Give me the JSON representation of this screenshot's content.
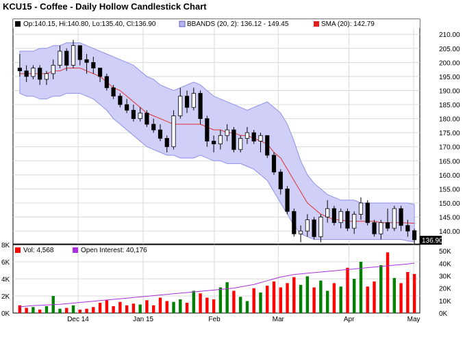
{
  "chart_data": [
    {
      "type": "candlestick",
      "title": "KCU15 - Coffee - Daily Hollow Candlestick Chart",
      "legend": {
        "ohlc": "Op:140.15, Hi:140.80, Lo:135.40, Cl:136.90",
        "bbands": "BBANDS (20, 2): 136.12 - 149.45",
        "sma": "SMA (20): 142.79"
      },
      "last_price_label": "136.90",
      "ylim": [
        135.4,
        212
      ],
      "y_ticks": [
        "140.00",
        "145.00",
        "150.00",
        "155.00",
        "160.00",
        "165.00",
        "170.00",
        "175.00",
        "180.00",
        "185.00",
        "190.00",
        "195.00",
        "200.00",
        "205.00",
        "210.00"
      ],
      "colors": {
        "up": "#000000",
        "down": "#000000",
        "bbands_fill": "#c8c8f5",
        "bbands_line": "#9090e0",
        "sma": "#e03030"
      },
      "candles": [
        {
          "o": 198,
          "h": 203,
          "l": 195,
          "c": 197
        },
        {
          "o": 197,
          "h": 199,
          "l": 193,
          "c": 195
        },
        {
          "o": 195,
          "h": 199,
          "l": 194,
          "c": 198
        },
        {
          "o": 198,
          "h": 199,
          "l": 192,
          "c": 194
        },
        {
          "o": 194,
          "h": 197,
          "l": 192,
          "c": 196
        },
        {
          "o": 196,
          "h": 201,
          "l": 194,
          "c": 199
        },
        {
          "o": 199,
          "h": 206,
          "l": 198,
          "c": 204
        },
        {
          "o": 204,
          "h": 205,
          "l": 197,
          "c": 199
        },
        {
          "o": 199,
          "h": 208,
          "l": 198,
          "c": 206
        },
        {
          "o": 206,
          "h": 206,
          "l": 199,
          "c": 201
        },
        {
          "o": 201,
          "h": 203,
          "l": 196,
          "c": 200
        },
        {
          "o": 200,
          "h": 202,
          "l": 196,
          "c": 198
        },
        {
          "o": 198,
          "h": 198,
          "l": 193,
          "c": 195
        },
        {
          "o": 195,
          "h": 196,
          "l": 190,
          "c": 191
        },
        {
          "o": 191,
          "h": 192,
          "l": 187,
          "c": 188
        },
        {
          "o": 188,
          "h": 189,
          "l": 184,
          "c": 185
        },
        {
          "o": 185,
          "h": 187,
          "l": 182,
          "c": 183
        },
        {
          "o": 183,
          "h": 185,
          "l": 179,
          "c": 180
        },
        {
          "o": 180,
          "h": 184,
          "l": 179,
          "c": 182
        },
        {
          "o": 182,
          "h": 183,
          "l": 177,
          "c": 178
        },
        {
          "o": 178,
          "h": 180,
          "l": 175,
          "c": 176
        },
        {
          "o": 176,
          "h": 178,
          "l": 172,
          "c": 173
        },
        {
          "o": 173,
          "h": 174,
          "l": 168,
          "c": 170
        },
        {
          "o": 170,
          "h": 183,
          "l": 169,
          "c": 181
        },
        {
          "o": 181,
          "h": 191,
          "l": 180,
          "c": 188
        },
        {
          "o": 188,
          "h": 190,
          "l": 182,
          "c": 184
        },
        {
          "o": 184,
          "h": 191,
          "l": 183,
          "c": 189
        },
        {
          "o": 189,
          "h": 190,
          "l": 178,
          "c": 180
        },
        {
          "o": 180,
          "h": 181,
          "l": 170,
          "c": 172
        },
        {
          "o": 172,
          "h": 174,
          "l": 168,
          "c": 171
        },
        {
          "o": 171,
          "h": 176,
          "l": 169,
          "c": 174
        },
        {
          "o": 174,
          "h": 178,
          "l": 172,
          "c": 176
        },
        {
          "o": 176,
          "h": 177,
          "l": 168,
          "c": 169
        },
        {
          "o": 169,
          "h": 174,
          "l": 168,
          "c": 173
        },
        {
          "o": 173,
          "h": 177,
          "l": 171,
          "c": 175
        },
        {
          "o": 175,
          "h": 176,
          "l": 171,
          "c": 172
        },
        {
          "o": 172,
          "h": 175,
          "l": 168,
          "c": 174
        },
        {
          "o": 174,
          "h": 174,
          "l": 166,
          "c": 167
        },
        {
          "o": 167,
          "h": 168,
          "l": 160,
          "c": 161
        },
        {
          "o": 161,
          "h": 162,
          "l": 153,
          "c": 155
        },
        {
          "o": 155,
          "h": 156,
          "l": 146,
          "c": 147
        },
        {
          "o": 147,
          "h": 148,
          "l": 138,
          "c": 139
        },
        {
          "o": 139,
          "h": 142,
          "l": 136,
          "c": 140
        },
        {
          "o": 140,
          "h": 146,
          "l": 138,
          "c": 144
        },
        {
          "o": 144,
          "h": 145,
          "l": 137,
          "c": 138
        },
        {
          "o": 138,
          "h": 146,
          "l": 136,
          "c": 145
        },
        {
          "o": 145,
          "h": 151,
          "l": 143,
          "c": 148
        },
        {
          "o": 148,
          "h": 149,
          "l": 142,
          "c": 143
        },
        {
          "o": 143,
          "h": 148,
          "l": 141,
          "c": 147
        },
        {
          "o": 147,
          "h": 148,
          "l": 140,
          "c": 141
        },
        {
          "o": 141,
          "h": 147,
          "l": 139,
          "c": 146
        },
        {
          "o": 146,
          "h": 152,
          "l": 144,
          "c": 150
        },
        {
          "o": 150,
          "h": 151,
          "l": 142,
          "c": 143
        },
        {
          "o": 143,
          "h": 144,
          "l": 138,
          "c": 139
        },
        {
          "o": 139,
          "h": 144,
          "l": 137,
          "c": 143
        },
        {
          "o": 143,
          "h": 148,
          "l": 140,
          "c": 141
        },
        {
          "o": 141,
          "h": 149,
          "l": 140,
          "c": 148
        },
        {
          "o": 148,
          "h": 149,
          "l": 140,
          "c": 142
        },
        {
          "o": 142,
          "h": 144,
          "l": 138,
          "c": 140
        },
        {
          "o": 140.15,
          "h": 140.8,
          "l": 135.4,
          "c": 136.9
        }
      ],
      "bb_upper": [
        204,
        204,
        204,
        205,
        205,
        206,
        206,
        207,
        207,
        207,
        206,
        205,
        204,
        203,
        202,
        201,
        200,
        199,
        197,
        195,
        194,
        192,
        191,
        190,
        191,
        192,
        193,
        192,
        190,
        188,
        187,
        186,
        185,
        184,
        183,
        184,
        185,
        186,
        184,
        182,
        178,
        172,
        165,
        160,
        157,
        155,
        153,
        152,
        151,
        151,
        151,
        150,
        150,
        150,
        150,
        150,
        150,
        150,
        150,
        149.45
      ],
      "bb_lower": [
        189,
        188,
        188,
        187,
        187,
        188,
        188,
        189,
        189,
        189,
        188,
        187,
        185,
        183,
        180,
        178,
        176,
        174,
        172,
        170,
        169,
        168,
        167,
        167,
        166,
        166,
        166,
        167,
        166,
        165,
        165,
        164,
        164,
        164,
        163,
        162,
        160,
        158,
        154,
        150,
        146,
        142,
        139,
        138,
        137,
        137,
        137,
        137,
        137,
        137,
        137,
        137,
        137,
        137,
        137,
        137,
        137,
        137,
        136.5,
        136.12
      ],
      "sma": [
        196,
        196,
        196,
        196,
        196,
        197,
        197,
        198,
        198,
        198,
        197,
        196,
        195,
        193,
        191,
        190,
        188,
        186,
        184,
        182,
        181,
        180,
        179,
        178,
        178,
        178,
        178,
        178,
        177,
        176,
        176,
        175,
        175,
        174,
        174,
        173,
        172,
        171,
        168,
        166,
        162,
        158,
        154,
        150,
        148,
        146,
        145,
        144,
        144,
        143.5,
        143.5,
        143.5,
        143.5,
        143.5,
        143,
        143,
        143,
        143,
        142.9,
        142.79
      ],
      "x_ticks": [
        {
          "label": "Dec 14",
          "x": 0.16
        },
        {
          "label": "Jan 15",
          "x": 0.32
        },
        {
          "label": "Feb",
          "x": 0.495
        },
        {
          "label": "Mar",
          "x": 0.652
        },
        {
          "label": "Apr",
          "x": 0.826
        },
        {
          "label": "May",
          "x": 0.985
        }
      ]
    },
    {
      "type": "bar",
      "legend": {
        "vol": "Vol: 4,568",
        "oi": "Open Interest: 40,176"
      },
      "vol_top_label": "8K",
      "vol_ticks": [
        "0K",
        "2K",
        "4K",
        "6K"
      ],
      "oi_ticks": [
        "0K",
        "10K",
        "20K",
        "30K",
        "40K",
        "50K"
      ],
      "vol_max": 8000,
      "oi_max": 55000,
      "colors": {
        "up": "#008000",
        "down": "#ff0000",
        "oi_line": "#aa30dd"
      },
      "volume": [
        900,
        600,
        700,
        400,
        800,
        2000,
        500,
        600,
        900,
        400,
        500,
        700,
        1200,
        1500,
        800,
        1300,
        900,
        1100,
        1000,
        1500,
        900,
        1800,
        1400,
        1300,
        1600,
        1200,
        2600,
        2300,
        1800,
        1600,
        3000,
        3600,
        2600,
        1900,
        1400,
        2900,
        2400,
        3200,
        3700,
        3000,
        3500,
        4200,
        3300,
        4300,
        3000,
        3800,
        2600,
        3500,
        3100,
        5300,
        4000,
        6000,
        3100,
        3700,
        5600,
        7100,
        4100,
        3500,
        4800,
        4568
      ],
      "oi": [
        5000,
        5500,
        6000,
        6200,
        6500,
        6800,
        7000,
        7500,
        8000,
        8500,
        9000,
        9500,
        10000,
        10500,
        11000,
        11500,
        12000,
        12500,
        13000,
        13500,
        14000,
        14500,
        15000,
        15500,
        16000,
        16500,
        17000,
        17500,
        18000,
        18500,
        19000,
        19500,
        20000,
        21000,
        22000,
        23000,
        24500,
        26000,
        27500,
        29000,
        30000,
        31000,
        31500,
        32000,
        32500,
        33000,
        33500,
        34000,
        34500,
        35000,
        35500,
        36000,
        36500,
        37000,
        37500,
        38000,
        38500,
        39000,
        39500,
        40176
      ]
    }
  ]
}
